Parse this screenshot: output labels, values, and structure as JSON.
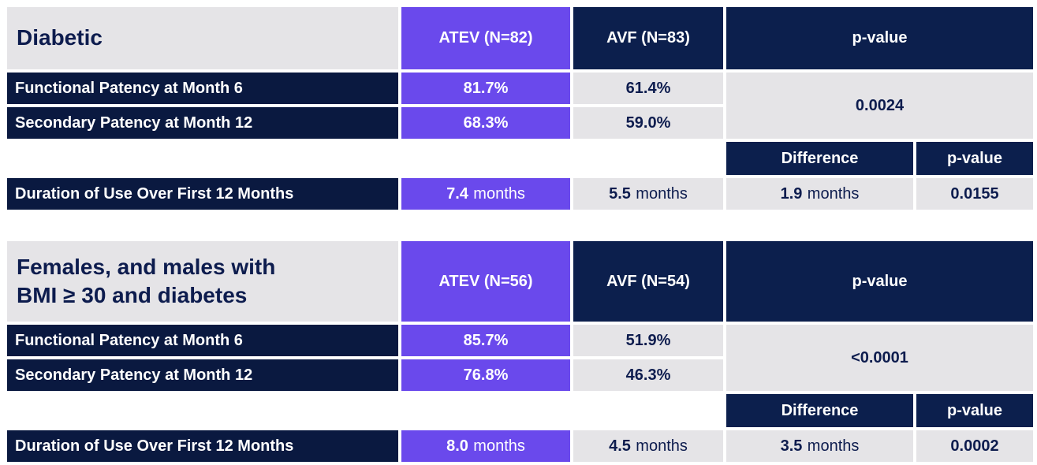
{
  "colors": {
    "purple": "#6A49EC",
    "navy_header": "#0C1F4D",
    "navy_row_label": "#0A1940",
    "cell_gray": "#E5E4E7",
    "value_text": "#0D1C4E",
    "white_text": "#FFFFFF"
  },
  "chart_data": [
    {
      "type": "table",
      "title": "Diabetic",
      "columns": {
        "atev": "ATEV (N=82)",
        "avf": "AVF (N=83)",
        "pvalue": "p-value"
      },
      "patency_rows": [
        {
          "label": "Functional Patency at Month 6",
          "atev": "81.7%",
          "avf": "61.4%"
        },
        {
          "label": "Secondary Patency at Month 12",
          "atev": "68.3%",
          "avf": "59.0%"
        }
      ],
      "combined_pvalue": "0.0024",
      "sub_columns": {
        "difference": "Difference",
        "pvalue": "p-value"
      },
      "duration_row": {
        "label": "Duration of Use Over First 12 Months",
        "atev": {
          "num": "7.4",
          "unit": "months"
        },
        "avf": {
          "num": "5.5",
          "unit": "months"
        },
        "difference": {
          "num": "1.9",
          "unit": "months"
        },
        "pvalue": "0.0155"
      }
    },
    {
      "type": "table",
      "title": "Females, and males with\nBMI ≥ 30 and diabetes",
      "columns": {
        "atev": "ATEV (N=56)",
        "avf": "AVF (N=54)",
        "pvalue": "p-value"
      },
      "patency_rows": [
        {
          "label": "Functional Patency at Month 6",
          "atev": "85.7%",
          "avf": "51.9%"
        },
        {
          "label": "Secondary Patency at Month 12",
          "atev": "76.8%",
          "avf": "46.3%"
        }
      ],
      "combined_pvalue": "<0.0001",
      "sub_columns": {
        "difference": "Difference",
        "pvalue": "p-value"
      },
      "duration_row": {
        "label": "Duration of Use Over First 12 Months",
        "atev": {
          "num": "8.0",
          "unit": "months"
        },
        "avf": {
          "num": "4.5",
          "unit": "months"
        },
        "difference": {
          "num": "3.5",
          "unit": "months"
        },
        "pvalue": "0.0002"
      }
    }
  ]
}
